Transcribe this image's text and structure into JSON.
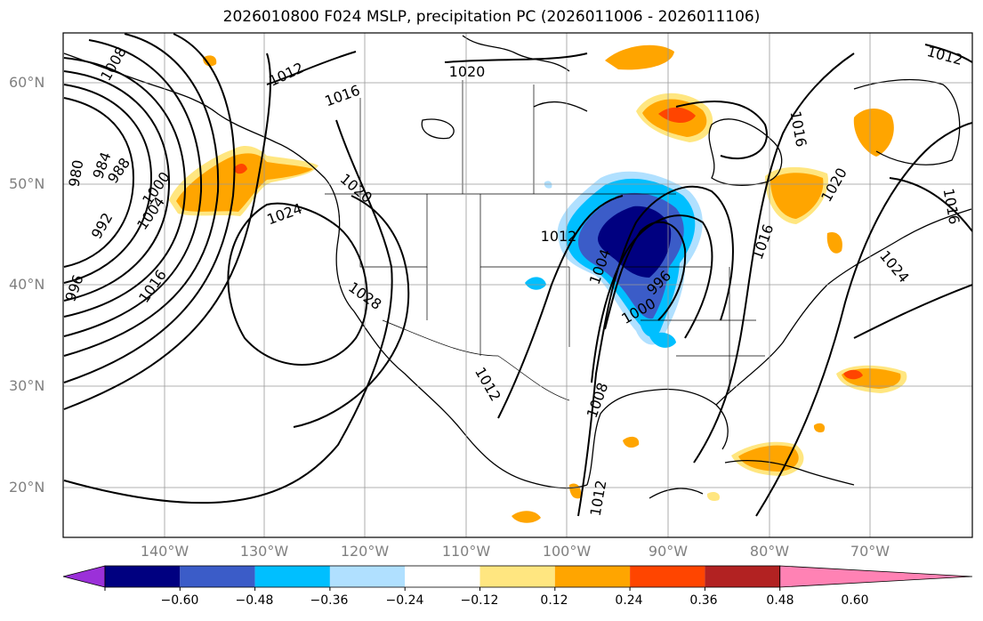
{
  "title": "2026010800 F024 MSLP, precipitation PC (2026011006 - 2026011106)",
  "lat_labels": [
    "60°N",
    "50°N",
    "40°N",
    "30°N",
    "20°N"
  ],
  "lon_labels": [
    "140°W",
    "130°W",
    "120°W",
    "110°W",
    "100°W",
    "90°W",
    "80°W",
    "70°W"
  ],
  "contour_labels": [
    "1008",
    "1012",
    "1016",
    "1020",
    "980",
    "984",
    "988",
    "992",
    "996",
    "1000",
    "1004",
    "1016",
    "1020",
    "1024",
    "1028",
    "1012",
    "1012",
    "1008",
    "1012",
    "1004",
    "996",
    "1000",
    "1016",
    "1020",
    "1024",
    "1012",
    "1016",
    "1016"
  ],
  "colorbar": {
    "ticks": [
      "−0.60",
      "−0.48",
      "−0.36",
      "−0.24",
      "−0.12",
      "0.12",
      "0.24",
      "0.36",
      "0.48",
      "0.60"
    ],
    "colors": [
      "#9b30d9",
      "#000080",
      "#3b5cc8",
      "#00bfff",
      "#b0e0ff",
      "#ffffff",
      "#ffe680",
      "#ffa500",
      "#ff4500",
      "#b22222",
      "#ff82b4"
    ]
  }
}
